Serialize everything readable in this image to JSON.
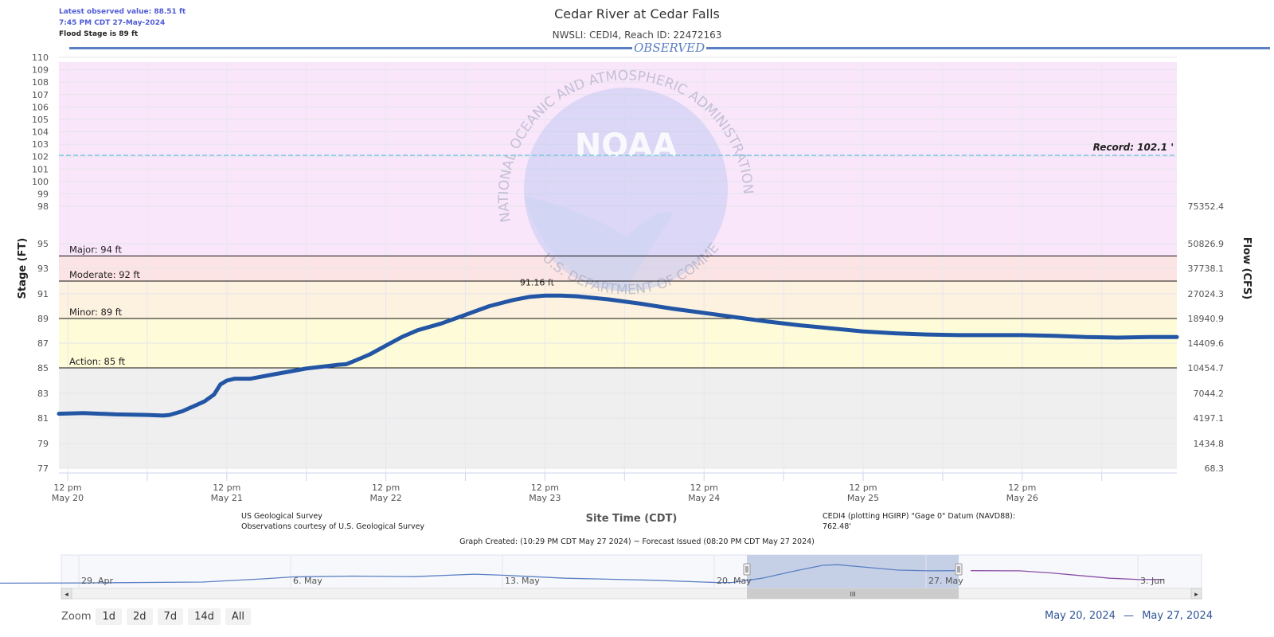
{
  "info": {
    "latest_value": "Latest observed value: 88.51 ft",
    "latest_time": "7:45 PM CDT 27-May-2024",
    "flood_stage": "Flood Stage is 89 ft"
  },
  "header": {
    "title": "Cedar River at Cedar Falls",
    "subtitle": "NWSLI: CEDI4, Reach ID: 22472163",
    "observed_label": "OBSERVED"
  },
  "chart_data": {
    "type": "line",
    "ylabel": "Stage (FT)",
    "y2label": "Flow (CFS)",
    "xlabel": "Site Time (CDT)",
    "ylim": [
      77,
      110
    ],
    "xlim": [
      "May 20 12:00",
      "May 27 12:00"
    ],
    "y_ticks": [
      77,
      79,
      81,
      83,
      85,
      87,
      89,
      91,
      93,
      95,
      98,
      99,
      100,
      101,
      102,
      103,
      104,
      105,
      106,
      107,
      108,
      109,
      110
    ],
    "y2_ticks": [
      {
        "stage": 77,
        "label": "68.3"
      },
      {
        "stage": 79,
        "label": "1434.8"
      },
      {
        "stage": 81,
        "label": "4197.1"
      },
      {
        "stage": 83,
        "label": "7044.2"
      },
      {
        "stage": 85,
        "label": "10454.7"
      },
      {
        "stage": 87,
        "label": "14409.6"
      },
      {
        "stage": 89,
        "label": "18940.9"
      },
      {
        "stage": 91,
        "label": "27024.3"
      },
      {
        "stage": 93,
        "label": "37738.1"
      },
      {
        "stage": 95,
        "label": "50826.9"
      },
      {
        "stage": 98,
        "label": "75352.4"
      }
    ],
    "x_ticks": [
      {
        "day": 0,
        "l1": "12 pm",
        "l2": "May 20"
      },
      {
        "day": 1,
        "l1": "12 pm",
        "l2": "May 21"
      },
      {
        "day": 2,
        "l1": "12 pm",
        "l2": "May 22"
      },
      {
        "day": 3,
        "l1": "12 pm",
        "l2": "May 23"
      },
      {
        "day": 4,
        "l1": "12 pm",
        "l2": "May 24"
      },
      {
        "day": 5,
        "l1": "12 pm",
        "l2": "May 25"
      },
      {
        "day": 6,
        "l1": "12 pm",
        "l2": "May 26"
      }
    ],
    "bands": [
      {
        "from": 77,
        "to": 85,
        "color": "#efefef"
      },
      {
        "from": 85,
        "to": 89,
        "color": "#fdfbd8"
      },
      {
        "from": 89,
        "to": 92,
        "color": "#fdf1e0"
      },
      {
        "from": 92,
        "to": 94,
        "color": "#fde4e4"
      },
      {
        "from": 94,
        "to": 110,
        "color": "#f9e6fb"
      }
    ],
    "thresholds": [
      {
        "value": 94,
        "label": "Major: 94 ft"
      },
      {
        "value": 92,
        "label": "Moderate: 92 ft"
      },
      {
        "value": 89,
        "label": "Minor: 89 ft"
      },
      {
        "value": 85,
        "label": "Action: 85 ft"
      }
    ],
    "record": {
      "value": 102.1,
      "label": "Record: 102.1 '"
    },
    "peak_label": "91.16 ft",
    "series": [
      {
        "color": "#2255a4",
        "points": [
          [
            -0.06,
            81.35
          ],
          [
            0.1,
            81.4
          ],
          [
            0.3,
            81.3
          ],
          [
            0.5,
            81.25
          ],
          [
            0.6,
            81.2
          ],
          [
            0.64,
            81.25
          ],
          [
            0.72,
            81.55
          ],
          [
            0.8,
            82.0
          ],
          [
            0.86,
            82.35
          ],
          [
            0.92,
            82.9
          ],
          [
            0.96,
            83.7
          ],
          [
            1.0,
            84.0
          ],
          [
            1.05,
            84.15
          ],
          [
            1.15,
            84.15
          ],
          [
            1.3,
            84.5
          ],
          [
            1.5,
            84.95
          ],
          [
            1.6,
            85.1
          ],
          [
            1.7,
            85.25
          ],
          [
            1.75,
            85.3
          ],
          [
            1.8,
            85.55
          ],
          [
            1.9,
            86.1
          ],
          [
            2.0,
            86.8
          ],
          [
            2.1,
            87.5
          ],
          [
            2.2,
            88.05
          ],
          [
            2.35,
            88.6
          ],
          [
            2.5,
            89.3
          ],
          [
            2.65,
            90.0
          ],
          [
            2.8,
            90.5
          ],
          [
            2.9,
            90.75
          ],
          [
            3.0,
            90.85
          ],
          [
            3.1,
            90.85
          ],
          [
            3.2,
            90.8
          ],
          [
            3.4,
            90.55
          ],
          [
            3.6,
            90.2
          ],
          [
            3.8,
            89.8
          ],
          [
            4.0,
            89.45
          ],
          [
            4.2,
            89.1
          ],
          [
            4.4,
            88.75
          ],
          [
            4.6,
            88.45
          ],
          [
            4.8,
            88.2
          ],
          [
            5.0,
            87.95
          ],
          [
            5.2,
            87.8
          ],
          [
            5.4,
            87.7
          ],
          [
            5.6,
            87.65
          ],
          [
            5.8,
            87.65
          ],
          [
            6.0,
            87.65
          ],
          [
            6.2,
            87.6
          ],
          [
            6.4,
            87.5
          ],
          [
            6.6,
            87.45
          ],
          [
            6.8,
            87.5
          ],
          [
            6.98,
            87.5
          ]
        ]
      }
    ]
  },
  "footer": {
    "source_1": "US Geological Survey",
    "source_2": "Observations courtesy of U.S. Geological Survey",
    "datum_1": "CEDI4 (plotting HGIRP) \"Gage 0\" Datum (NAVD88):",
    "datum_2": "762.48'",
    "graph_created": "Graph Created: (10:29 PM CDT May 27 2024) ~ Forecast Issued (08:20 PM CDT May 27 2024)"
  },
  "navigator": {
    "labels": [
      {
        "day": -22,
        "text": "29. Apr"
      },
      {
        "day": -15,
        "text": "6. May"
      },
      {
        "day": -8,
        "text": "13. May"
      },
      {
        "day": -1,
        "text": "20. May"
      },
      {
        "day": 6,
        "text": "27. May"
      },
      {
        "day": 13,
        "text": "3. Jun"
      }
    ],
    "scroll_grip": "III",
    "left_arrow": "◂",
    "right_arrow": "▸"
  },
  "zoom": {
    "label": "Zoom",
    "buttons": [
      "1d",
      "2d",
      "7d",
      "14d",
      "All"
    ]
  },
  "range": {
    "from": "May 20, 2024",
    "sep": "—",
    "to": "May 27, 2024"
  },
  "watermark": {
    "logo": "NOAA",
    "ring_top": "NATIONAL OCEANIC AND ATMOSPHERIC ADMINISTRATION",
    "ring_bottom": "U.S. DEPARTMENT OF COMMERCE"
  },
  "colors": {
    "line": "#2255a4",
    "record": "#7ec8e3",
    "navigator_line": "#5b7fc4",
    "forecast": "#8a4fa6",
    "accent": "#2f5597"
  }
}
